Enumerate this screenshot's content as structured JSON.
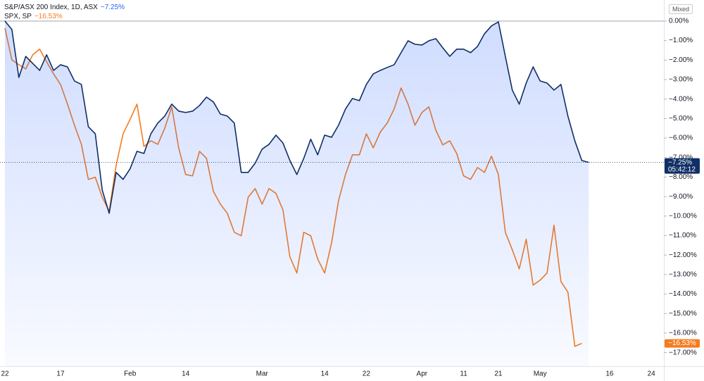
{
  "chart_data": {
    "type": "line",
    "scale_mode": "Mixed",
    "countdown": "05:42:12",
    "categories": [
      "22",
      null,
      null,
      null,
      null,
      null,
      null,
      null,
      "17",
      null,
      null,
      null,
      null,
      null,
      null,
      null,
      null,
      null,
      "Feb",
      null,
      null,
      null,
      null,
      null,
      null,
      null,
      "14",
      null,
      null,
      null,
      null,
      null,
      null,
      null,
      null,
      null,
      null,
      "Mar",
      null,
      null,
      null,
      null,
      null,
      null,
      null,
      null,
      "14",
      null,
      null,
      null,
      null,
      null,
      "22",
      null,
      null,
      null,
      null,
      null,
      null,
      null,
      "Apr",
      null,
      null,
      null,
      null,
      null,
      "11",
      null,
      null,
      null,
      null,
      "21",
      null,
      null,
      null,
      null,
      null,
      "May",
      null,
      null,
      null,
      null,
      null,
      null,
      null,
      null,
      null,
      "16",
      null,
      null,
      null,
      null,
      null,
      "24",
      null
    ],
    "ylim": [
      -17.7,
      0.9
    ],
    "yticks": [
      {
        "value": 0,
        "label": "0.00%"
      },
      {
        "value": -1,
        "label": "−1.00%"
      },
      {
        "value": -2,
        "label": "−2.00%"
      },
      {
        "value": -3,
        "label": "−3.00%"
      },
      {
        "value": -4,
        "label": "−4.00%"
      },
      {
        "value": -5,
        "label": "−5.00%"
      },
      {
        "value": -6,
        "label": "−6.00%"
      },
      {
        "value": -7,
        "label": "−7.00%"
      },
      {
        "value": -8,
        "label": "−8.00%"
      },
      {
        "value": -9,
        "label": "−9.00%"
      },
      {
        "value": -10,
        "label": "−10.00%"
      },
      {
        "value": -11,
        "label": "−11.00%"
      },
      {
        "value": -12,
        "label": "−12.00%"
      },
      {
        "value": -13,
        "label": "−13.00%"
      },
      {
        "value": -14,
        "label": "−14.00%"
      },
      {
        "value": -15,
        "label": "−15.00%"
      },
      {
        "value": -16,
        "label": "−16.00%"
      },
      {
        "value": -17,
        "label": "−17.00%"
      }
    ],
    "grid": false,
    "series": [
      {
        "name": "S&P/ASX 200 Index, 1D, ASX",
        "color": "#0f2f66",
        "area": true,
        "last_label": "−7.25%",
        "values": [
          0,
          -0.43,
          -2.89,
          -1.81,
          -2.17,
          -2.53,
          -1.73,
          -2.53,
          -2.24,
          -2.35,
          -3.07,
          -3.25,
          -5.42,
          -5.78,
          -8.66,
          -9.86,
          -7.76,
          -8.12,
          -7.58,
          -6.68,
          -6.79,
          -5.78,
          -5.23,
          -4.87,
          -4.26,
          -4.62,
          -4.69,
          -4.62,
          -4.33,
          -3.9,
          -4.15,
          -4.77,
          -4.87,
          -5.23,
          -7.76,
          -7.76,
          -7.29,
          -6.57,
          -6.32,
          -5.85,
          -6.25,
          -7.15,
          -7.87,
          -7.04,
          -6.06,
          -6.86,
          -5.85,
          -5.96,
          -5.34,
          -4.51,
          -3.97,
          -4.08,
          -3.25,
          -2.71,
          -2.53,
          -2.38,
          -2.24,
          -1.62,
          -1.01,
          -1.19,
          -1.23,
          -1.01,
          -0.9,
          -1.37,
          -1.81,
          -1.44,
          -1.44,
          -1.62,
          -1.3,
          -0.65,
          -0.25,
          -0.04,
          -1.81,
          -3.54,
          -4.26,
          -3.18,
          -2.35,
          -3.07,
          -3.18,
          -3.54,
          -3.25,
          -4.87,
          -6.14,
          -7.15,
          -7.25,
          null,
          null,
          null,
          null,
          null,
          null,
          null,
          null,
          null,
          null
        ]
      },
      {
        "name": "SPX, SP",
        "color": "#f57c1f",
        "area": false,
        "last_label": "−16.53%",
        "values": [
          -0.36,
          -1.99,
          -2.24,
          -2.45,
          -1.73,
          -1.44,
          -2.09,
          -2.71,
          -3.25,
          -4.26,
          -5.34,
          -6.32,
          -8.12,
          -8.01,
          -9.03,
          -9.75,
          -7.4,
          -5.78,
          -5.05,
          -4.26,
          -6.43,
          -6.14,
          -6.32,
          -5.49,
          -4.4,
          -6.5,
          -7.87,
          -7.94,
          -6.68,
          -7.04,
          -8.74,
          -9.39,
          -9.86,
          -10.83,
          -11.01,
          -9.03,
          -8.59,
          -9.39,
          -8.59,
          -8.84,
          -9.68,
          -12.09,
          -12.92,
          -10.83,
          -11.01,
          -12.2,
          -12.92,
          -11.37,
          -9.21,
          -7.87,
          -6.86,
          -6.86,
          -5.78,
          -6.5,
          -5.7,
          -5.23,
          -4.51,
          -3.43,
          -4.26,
          -5.34,
          -4.69,
          -4.4,
          -5.6,
          -6.35,
          -6.14,
          -6.79,
          -7.94,
          -8.12,
          -7.51,
          -7.76,
          -6.93,
          -7.87,
          -10.83,
          -11.73,
          -12.71,
          -11.19,
          -13.54,
          -13.29,
          -12.92,
          -10.47,
          -13.36,
          -13.9,
          -16.68,
          -16.53,
          null,
          null,
          null,
          null,
          null,
          null,
          null,
          null,
          null,
          null,
          null
        ]
      }
    ]
  }
}
